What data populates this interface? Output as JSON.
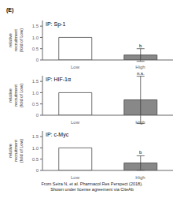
{
  "title": "(E)",
  "caption": "From Seira N, et al. Pharmacol Res Perspect (2018).\nShown under license agreement via CiteAb",
  "chart_data": [
    {
      "type": "bar",
      "title": "IP: Sp-1",
      "categories": [
        "Low",
        "High"
      ],
      "values": [
        1.0,
        0.22
      ],
      "errors": [
        0.0,
        0.28
      ],
      "colors": [
        "white",
        "#888888"
      ],
      "y_label": "relative\nrecruitment\n(fold of Low)",
      "ylim": [
        0,
        1.75
      ],
      "yticks": [
        0,
        0.5,
        {
          "value": 1.0,
          "label": "1.0"
        },
        1.5
      ],
      "annotations": [
        {
          "text": "b",
          "category": "High"
        }
      ]
    },
    {
      "type": "bar",
      "title": "IP: HIF-1α",
      "categories": [
        "Low",
        "High"
      ],
      "values": [
        1.0,
        0.68
      ],
      "errors": [
        0.0,
        1.05
      ],
      "colors": [
        "white",
        "#888888"
      ],
      "y_label": "relative\nrecruitment\n(fold of Low)",
      "ylim": [
        0,
        1.75
      ],
      "yticks": [
        0,
        0.5,
        {
          "value": 1.0,
          "label": "1.0"
        },
        1.5
      ],
      "annotations": [
        {
          "text": "n.s.",
          "category": "High"
        }
      ]
    },
    {
      "type": "bar",
      "title": "IP: c-Myc",
      "categories": [
        "Low",
        "High"
      ],
      "values": [
        1.0,
        0.33
      ],
      "errors": [
        0.0,
        0.32
      ],
      "colors": [
        "white",
        "#888888"
      ],
      "y_label": "relative\nrecruitment\n(fold of Low)",
      "ylim": [
        0,
        1.75
      ],
      "yticks": [
        0,
        0.5,
        {
          "value": 1.0,
          "label": "1.0"
        },
        1.5
      ],
      "annotations": [
        {
          "text": "b",
          "category": "High"
        }
      ]
    }
  ]
}
